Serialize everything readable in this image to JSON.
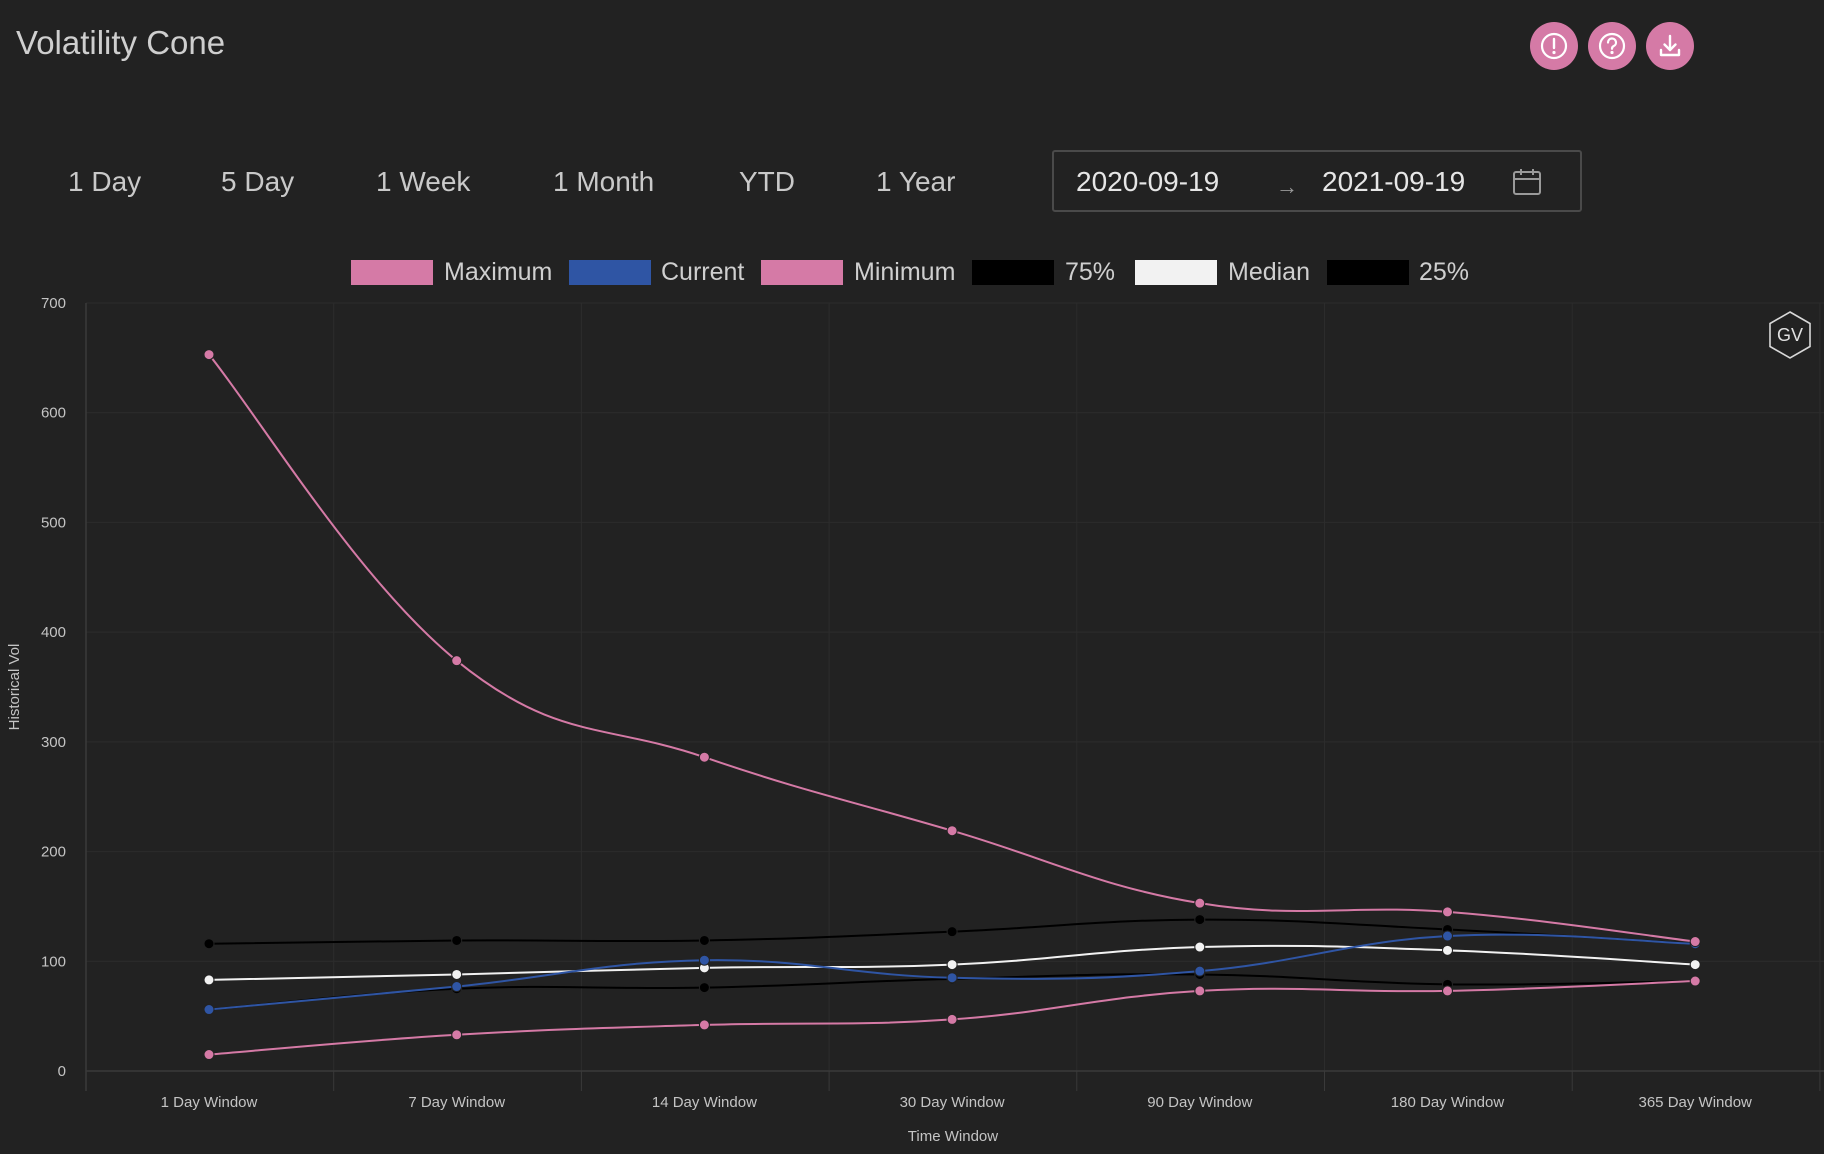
{
  "title": "Volatility Cone",
  "header_icons": [
    {
      "name": "alert-icon"
    },
    {
      "name": "help-icon"
    },
    {
      "name": "download-icon"
    }
  ],
  "range_tabs": [
    "1 Day",
    "5 Day",
    "1 Week",
    "1 Month",
    "YTD",
    "1 Year"
  ],
  "date_range": {
    "start": "2020-09-19",
    "end": "2021-09-19",
    "separator": "→"
  },
  "badge": "GV",
  "colors": {
    "maximum": "#d57aa6",
    "current": "#2f55a4",
    "minimum": "#d57aa6",
    "p75": "#000000",
    "median": "#f2f2f2",
    "p25": "#000000",
    "background": "#222222",
    "accent": "#d57aa6"
  },
  "chart_data": {
    "type": "line",
    "xlabel": "Time Window",
    "ylabel": "Historical Vol",
    "ylim": [
      0,
      700
    ],
    "yticks": [
      0,
      100,
      200,
      300,
      400,
      500,
      600,
      700
    ],
    "grid": true,
    "legend_position": "top-center",
    "categories": [
      "1 Day Window",
      "7 Day Window",
      "14 Day Window",
      "30 Day Window",
      "90 Day Window",
      "180 Day Window",
      "365 Day Window"
    ],
    "series": [
      {
        "name": "Maximum",
        "color": "#d57aa6",
        "values": [
          653,
          374,
          286,
          219,
          153,
          145,
          118
        ]
      },
      {
        "name": "Current",
        "color": "#2f55a4",
        "values": [
          56,
          77,
          101,
          85,
          91,
          123,
          116
        ]
      },
      {
        "name": "Minimum",
        "color": "#d57aa6",
        "values": [
          15,
          33,
          42,
          47,
          73,
          73,
          82
        ]
      },
      {
        "name": "75%",
        "color": "#000000",
        "values": [
          116,
          119,
          119,
          127,
          138,
          129,
          116
        ]
      },
      {
        "name": "Median",
        "color": "#f2f2f2",
        "values": [
          83,
          88,
          94,
          97,
          113,
          110,
          97
        ]
      },
      {
        "name": "25%",
        "color": "#000000",
        "values": [
          56,
          75,
          76,
          84,
          88,
          79,
          82
        ]
      }
    ]
  }
}
